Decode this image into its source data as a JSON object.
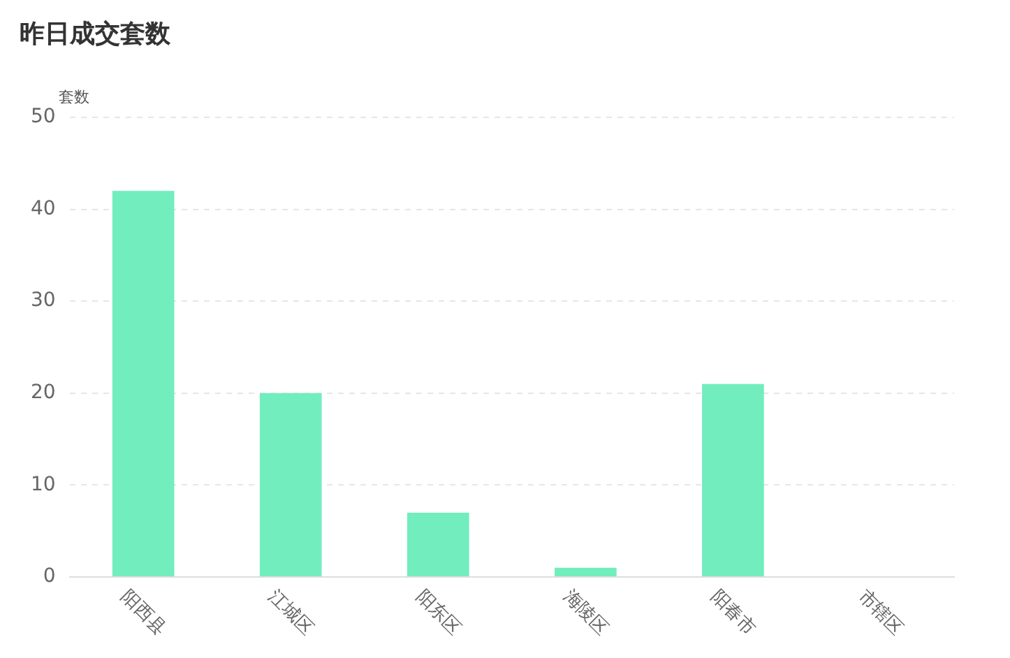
{
  "chart_data": {
    "type": "bar",
    "title": "昨日成交套数",
    "ylabel": "套数",
    "categories": [
      "阳西县",
      "江城区",
      "阳东区",
      "海陵区",
      "阳春市",
      "市辖区"
    ],
    "values": [
      42,
      20,
      7,
      1,
      21,
      0
    ],
    "color": "#72edbe",
    "ylim": [
      0,
      50
    ],
    "yticks": [
      0,
      10,
      20,
      30,
      40,
      50
    ],
    "grid": "y"
  }
}
